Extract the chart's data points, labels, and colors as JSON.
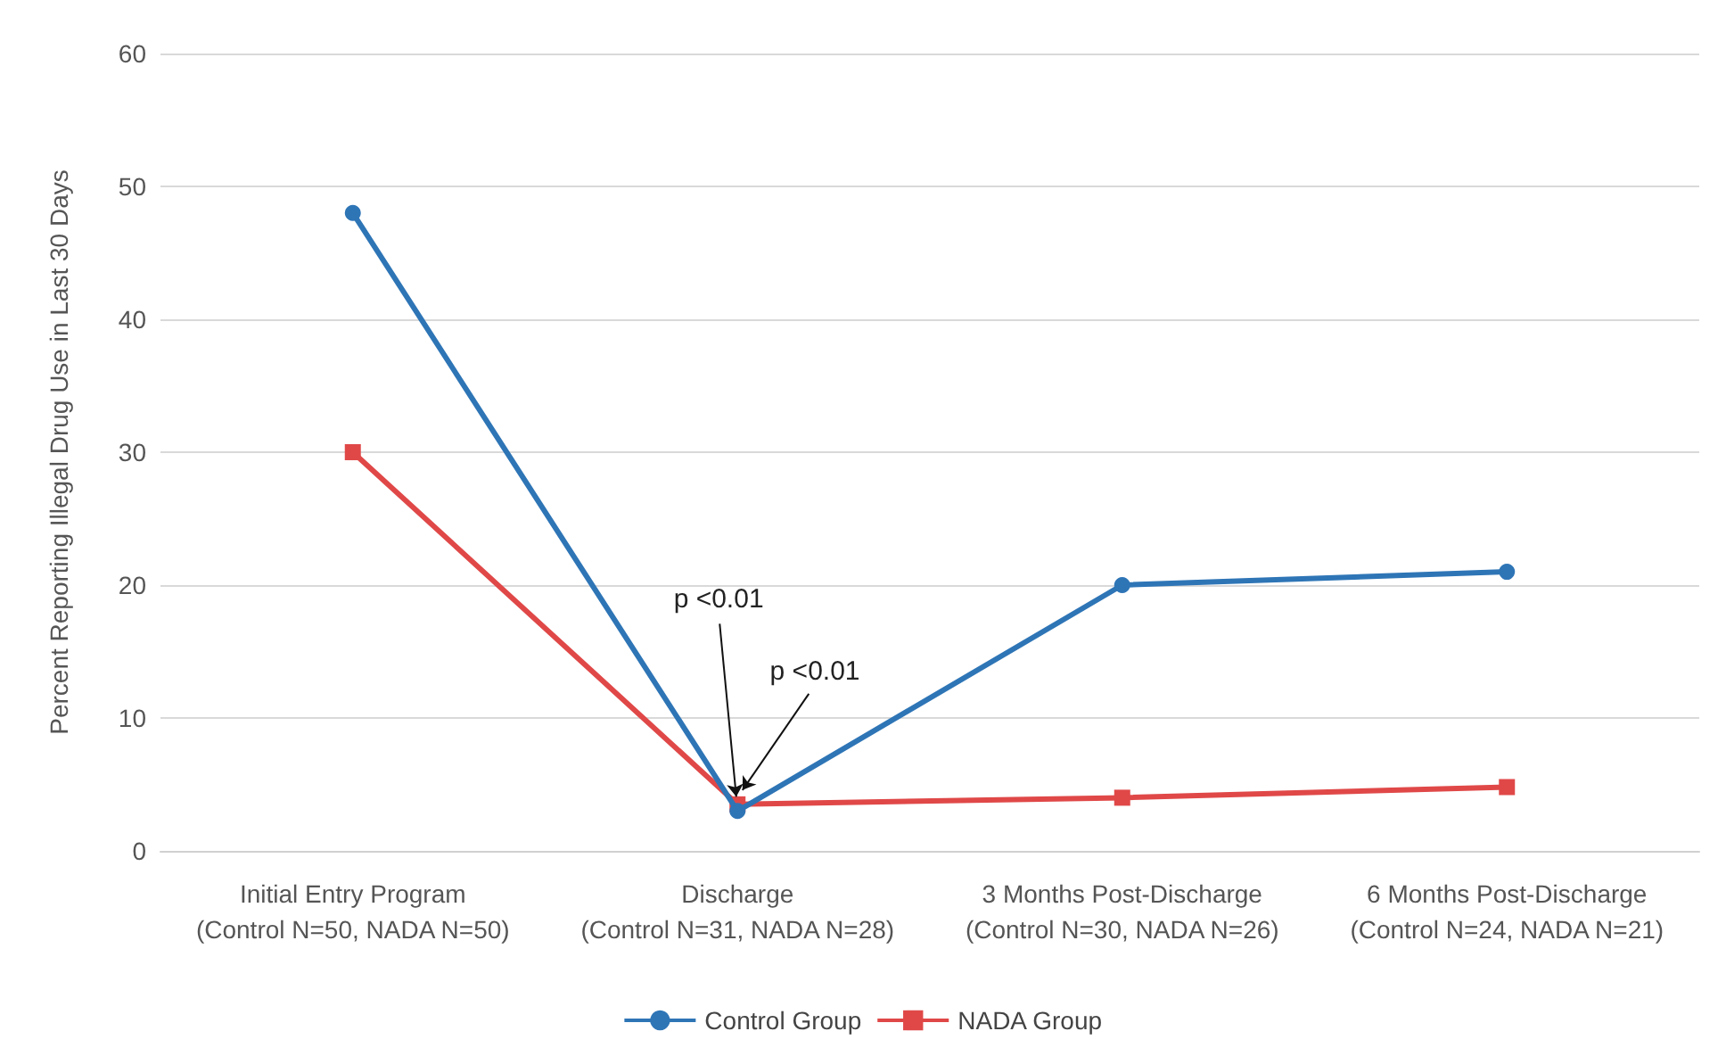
{
  "chart_data": {
    "type": "line",
    "ylabel": "Percent Reporting Illegal Drug Use in Last 30 Days",
    "categories": [
      "Initial Entry Program\n(Control N=50, NADA N=50)",
      "Discharge\n(Control N=31, NADA N=28)",
      "3 Months Post-Discharge\n(Control N=30, NADA N=26)",
      "6 Months Post-Discharge\n(Control N=24, NADA N=21)"
    ],
    "series": [
      {
        "name": "Control Group",
        "color": "#2e75b6",
        "marker": "circle",
        "values": [
          48,
          3,
          20,
          21
        ]
      },
      {
        "name": "NADA Group",
        "color": "#e04848",
        "marker": "square",
        "values": [
          30,
          3.5,
          4,
          4.8
        ]
      }
    ],
    "ylim": [
      0,
      60
    ],
    "yticks": [
      0,
      10,
      20,
      30,
      40,
      50,
      60
    ],
    "grid": "y",
    "legend": "bottom",
    "annotations": [
      {
        "text": "p <0.01",
        "x": "Discharge\n(Control N=31, NADA N=28)",
        "y": 3
      },
      {
        "text": "p <0.01",
        "x": "Discharge\n(Control N=31, NADA N=28)",
        "y": 3.5
      }
    ]
  }
}
